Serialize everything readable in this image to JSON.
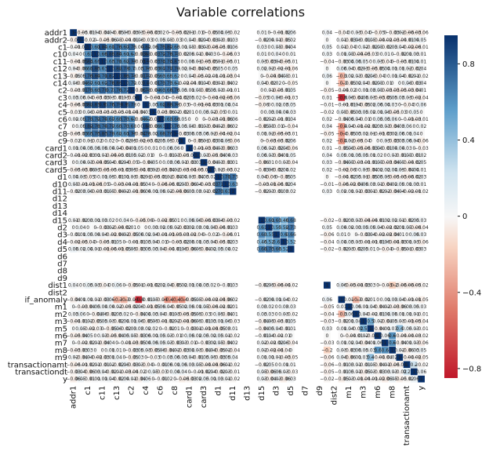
{
  "chart_data": {
    "type": "heatmap",
    "title": "Variable correlations",
    "variables": [
      "addr1",
      "addr2",
      "c1",
      "c10",
      "c11",
      "c12",
      "c13",
      "c14",
      "c2",
      "c3",
      "c4",
      "c5",
      "c6",
      "c7",
      "c8",
      "c9",
      "card1",
      "card2",
      "card3",
      "card5",
      "d1",
      "d10",
      "d11",
      "d12",
      "d13",
      "d14",
      "d15",
      "d2",
      "d3",
      "d4",
      "d5",
      "d6",
      "d7",
      "d8",
      "d9",
      "dist1",
      "dist2",
      "if_anomaly",
      "m1",
      "m2",
      "m3",
      "m5",
      "m6",
      "m7",
      "m8",
      "m9",
      "transactionamt",
      "transactiondt",
      "y"
    ],
    "x_tick_labels": [
      "addr1",
      "c1",
      "c11",
      "c13",
      "c2",
      "c4",
      "c6",
      "c8",
      "card1",
      "card3",
      "d1",
      "d11",
      "d13",
      "d15",
      "d3",
      "d5",
      "d7",
      "d9",
      "dist2",
      "m1",
      "m3",
      "m6",
      "m8",
      "transactionamt",
      "y"
    ],
    "y_tick_labels": [
      "addr1",
      "addr2",
      "c1",
      "c10",
      "c11",
      "c12",
      "c13",
      "c14",
      "c2",
      "c3",
      "c4",
      "c5",
      "c6",
      "c7",
      "c8",
      "c9",
      "card1",
      "card2",
      "card3",
      "card5",
      "d1",
      "d10",
      "d11",
      "d12",
      "d13",
      "d14",
      "d15",
      "d2",
      "d3",
      "d4",
      "d5",
      "d6",
      "d7",
      "d8",
      "d9",
      "dist1",
      "dist2",
      "if_anomaly",
      "m1",
      "m2",
      "m3",
      "m5",
      "m6",
      "m7",
      "m8",
      "m9",
      "transactionamt",
      "transactiondt",
      "y"
    ],
    "empty_variables": [
      "d12",
      "d13",
      "d14",
      "d6",
      "d7",
      "d8",
      "d9",
      "dist2"
    ],
    "correlation_groups": [
      {
        "members": [
          "c1",
          "c10",
          "c11",
          "c12",
          "c13",
          "c14",
          "c2",
          "c4",
          "c6",
          "c7",
          "c8"
        ],
        "value": 0.75
      },
      {
        "members": [
          "d1",
          "d10",
          "d11"
        ],
        "value": 0.7
      },
      {
        "members": [
          "d15",
          "d2",
          "d3",
          "d4",
          "d5"
        ],
        "value": 0.6
      }
    ],
    "highlighted_correlations": [
      {
        "a": "if_anomaly",
        "b": "c3",
        "value": -0.8
      },
      {
        "a": "if_anomaly",
        "b": "c9",
        "value": -0.4
      },
      {
        "a": "if_anomaly",
        "b": "c13",
        "value": -0.3
      },
      {
        "a": "if_anomaly",
        "b": "c14",
        "value": -0.3
      },
      {
        "a": "if_anomaly",
        "b": "c7",
        "value": -0.4
      },
      {
        "a": "if_anomaly",
        "b": "c8",
        "value": -0.4
      },
      {
        "a": "if_anomaly",
        "b": "m2",
        "value": -0.3
      },
      {
        "a": "dist2",
        "b": "m9",
        "value": -0.5
      },
      {
        "a": "dist2",
        "b": "c13",
        "value": -0.2
      },
      {
        "a": "m3",
        "b": "m5",
        "value": 0.5
      },
      {
        "a": "m6",
        "b": "m8",
        "value": 0.6
      },
      {
        "a": "m7",
        "b": "m8",
        "value": 0.6
      },
      {
        "a": "m5",
        "b": "m9",
        "value": 0.4
      },
      {
        "a": "transactionamt",
        "b": "transactiondt",
        "value": 0.2
      },
      {
        "a": "dist1",
        "b": "m8",
        "value": -0.2
      }
    ],
    "colorbar": {
      "min": -0.85,
      "max": 0.95,
      "ticks": [
        -0.8,
        -0.4,
        0,
        0.4,
        0.8
      ],
      "tick_labels": [
        "−0.8",
        "−0.4",
        "0",
        "0.4",
        "0.8"
      ],
      "colormap": "RdBu"
    },
    "annotate_cells": true,
    "grid": false
  }
}
